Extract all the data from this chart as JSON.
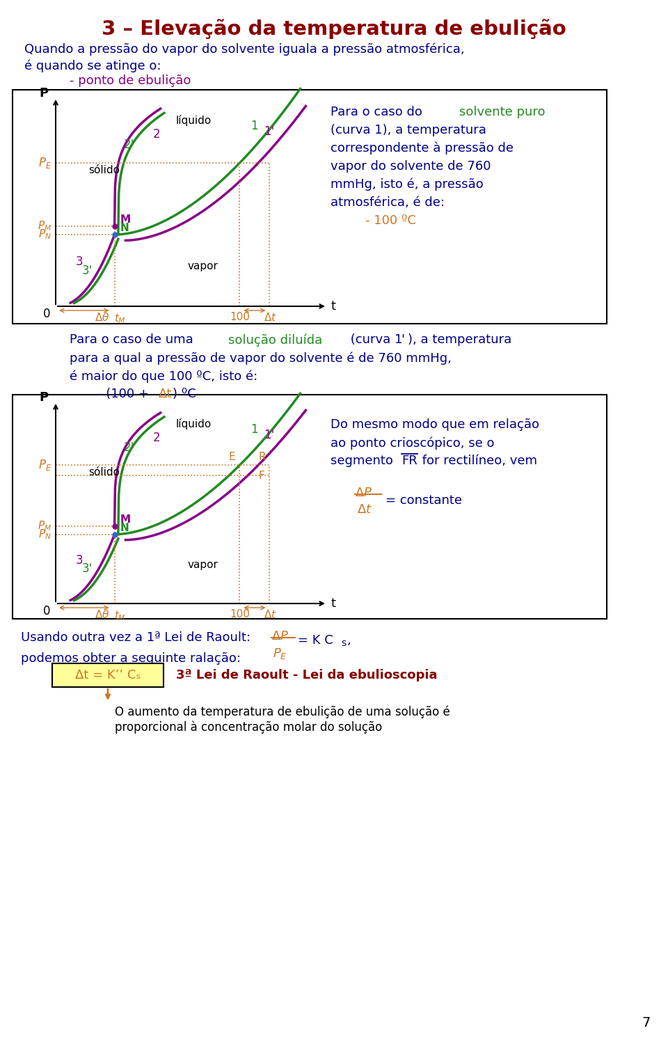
{
  "title": "3 – Elevação da temperatura de ebulição",
  "title_color": "#8B0000",
  "bg_color": "#ffffff",
  "orange": "#CC7722",
  "green": "#228B22",
  "purple": "#880088",
  "blue_dark": "#000088",
  "red_dark": "#880000",
  "page_num": "7",
  "bottom_box_color": "#FFFF99",
  "intro_line3_color": "#880088",
  "chart2_right_text1": "Do mesmo modo que em relação",
  "chart2_right_text2": "ao ponto crioscópico, se o",
  "bottom_note1": "O aumento da temperatura de ebulição de uma solução é",
  "bottom_note2": "proporcional à concentração molar do solução"
}
